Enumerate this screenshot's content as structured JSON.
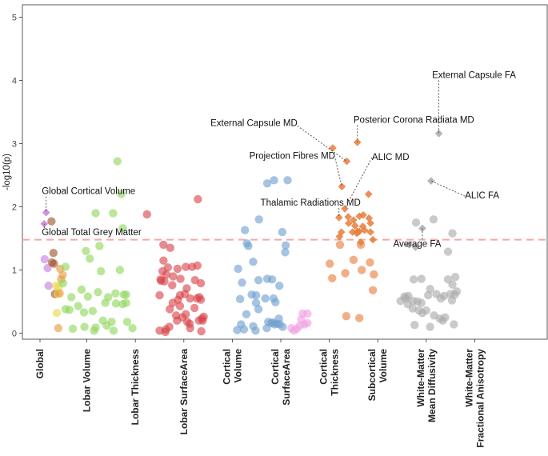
{
  "chart_data": {
    "type": "scatter",
    "ylabel": "-log10(p)",
    "ylim": [
      0,
      5
    ],
    "yticks": [
      "0",
      "1",
      "2",
      "3",
      "4",
      "5"
    ],
    "threshold": 1.48,
    "grid": false,
    "colors": {
      "global": "#c77ede",
      "lobar_volume": "#a0522d",
      "lobar_thickness": "#e6d84a",
      "lobar_surface_area": "#e69a3c",
      "cortical_volume": "#8fd65c",
      "cortical_surface_area": "#d9434a",
      "cortical_thickness": "#6fa0d0",
      "subcortical_volume": "#f0a0e0",
      "wm_md": "#e67e3c",
      "wm_fa": "#aaaaaa",
      "threshold": "#f4a9a9"
    },
    "categories": [
      {
        "key": "global",
        "label": [
          "Global"
        ],
        "x": 0
      },
      {
        "key": "lobar_volume",
        "label": [
          "Lobar Volume"
        ],
        "x": 1
      },
      {
        "key": "lobar_thickness",
        "label": [
          "Lobar Thickness"
        ],
        "x": 2
      },
      {
        "key": "lobar_surface_area",
        "label": [
          "Lobar SurfaceArea"
        ],
        "x": 3
      },
      {
        "key": "cortical_volume",
        "label": [
          "Cortical",
          "Volume"
        ],
        "x": 4
      },
      {
        "key": "cortical_surface_area",
        "label": [
          "Cortical",
          "SurfaceArea"
        ],
        "x": 5
      },
      {
        "key": "cortical_thickness",
        "label": [
          "Cortical",
          "Thickness"
        ],
        "x": 6
      },
      {
        "key": "subcortical_volume",
        "label": [
          "Subcortical",
          "Volume"
        ],
        "x": 7
      },
      {
        "key": "wm_md",
        "label": [
          "White-Matter",
          "Mean Diffusivity"
        ],
        "x": 8
      },
      {
        "key": "wm_fa",
        "label": [
          "White-Matter",
          "Fractional Anisotropy"
        ],
        "x": 9
      }
    ],
    "series": [
      {
        "key": "global",
        "marker": "diamond",
        "points": [
          [
            0.16,
            1.91
          ],
          [
            0.12,
            1.73
          ]
        ]
      },
      {
        "key": "global",
        "marker": "circle",
        "points": [
          [
            0.13,
            1.17
          ],
          [
            0.19,
            1.03
          ],
          [
            0.21,
            0.75
          ]
        ]
      },
      {
        "key": "lobar_volume",
        "marker": "circle",
        "points": [
          [
            0.27,
            1.77
          ],
          [
            0.31,
            1.27
          ],
          [
            0.28,
            1.12
          ],
          [
            0.32,
            1.1
          ],
          [
            0.34,
            0.62
          ]
        ]
      },
      {
        "key": "lobar_thickness",
        "marker": "circle",
        "points": [
          [
            0.36,
            0.75
          ],
          [
            0.4,
            0.62
          ],
          [
            0.42,
            0.73
          ],
          [
            0.38,
            0.32
          ]
        ]
      },
      {
        "key": "lobar_surface_area",
        "marker": "circle",
        "points": [
          [
            0.45,
            1.02
          ],
          [
            0.47,
            0.85
          ],
          [
            0.5,
            0.92
          ],
          [
            0.44,
            0.63
          ],
          [
            0.41,
            0.08
          ]
        ]
      },
      {
        "key": "cortical_volume",
        "marker": "circle",
        "points": [
          [
            1.63,
            2.72
          ],
          [
            1.71,
            2.2
          ],
          [
            1.18,
            1.9
          ],
          [
            1.54,
            1.9
          ],
          [
            1.74,
            1.66
          ],
          [
            0.56,
            1.05
          ],
          [
            1.26,
            1.38
          ],
          [
            0.98,
            1.3
          ],
          [
            1.06,
            1.18
          ],
          [
            1.29,
            0.98
          ],
          [
            1.68,
            1.0
          ],
          [
            0.51,
            0.79
          ],
          [
            0.68,
            0.57
          ],
          [
            0.89,
            0.69
          ],
          [
            1.02,
            0.58
          ],
          [
            1.23,
            0.65
          ],
          [
            1.44,
            0.57
          ],
          [
            1.59,
            0.63
          ],
          [
            1.76,
            0.61
          ],
          [
            1.81,
            0.61
          ],
          [
            1.38,
            0.48
          ],
          [
            1.6,
            0.47
          ],
          [
            1.74,
            0.46
          ],
          [
            1.81,
            0.48
          ],
          [
            0.56,
            0.38
          ],
          [
            0.64,
            0.37
          ],
          [
            0.82,
            0.43
          ],
          [
            0.94,
            0.33
          ],
          [
            1.12,
            0.35
          ],
          [
            1.33,
            0.2
          ],
          [
            1.41,
            0.12
          ],
          [
            1.51,
            0.18
          ],
          [
            1.55,
            0.04
          ],
          [
            0.71,
            0.07
          ],
          [
            0.95,
            0.1
          ],
          [
            1.18,
            0.09
          ],
          [
            1.15,
            0.04
          ],
          [
            1.83,
            0.18
          ],
          [
            1.94,
            0.08
          ]
        ]
      },
      {
        "key": "cortical_surface_area",
        "marker": "circle",
        "points": [
          [
            3.29,
            2.12
          ],
          [
            2.24,
            1.88
          ],
          [
            2.58,
            1.4
          ],
          [
            2.72,
            1.35
          ],
          [
            2.58,
            1.15
          ],
          [
            2.56,
            0.98
          ],
          [
            2.67,
            1.04
          ],
          [
            2.78,
            0.9
          ],
          [
            2.87,
            1.02
          ],
          [
            3.04,
            1.05
          ],
          [
            3.17,
            1.05
          ],
          [
            3.28,
            1.07
          ],
          [
            2.53,
            0.83
          ],
          [
            2.64,
            0.93
          ],
          [
            2.76,
            0.76
          ],
          [
            2.93,
            0.86
          ],
          [
            3.06,
            0.71
          ],
          [
            3.23,
            0.84
          ],
          [
            3.35,
            0.79
          ],
          [
            2.52,
            0.85
          ],
          [
            2.6,
            0.82
          ],
          [
            2.77,
            0.48
          ],
          [
            2.92,
            0.6
          ],
          [
            3.02,
            0.62
          ],
          [
            3.13,
            0.55
          ],
          [
            3.27,
            0.55
          ],
          [
            3.32,
            0.57
          ],
          [
            3.35,
            0.53
          ],
          [
            2.5,
            0.6
          ],
          [
            2.88,
            0.53
          ],
          [
            2.92,
            0.43
          ],
          [
            3.04,
            0.3
          ],
          [
            3.22,
            0.4
          ],
          [
            3.37,
            0.23
          ],
          [
            3.41,
            0.26
          ],
          [
            2.71,
            0.38
          ],
          [
            2.84,
            0.28
          ],
          [
            2.86,
            0.2
          ],
          [
            2.97,
            0.25
          ],
          [
            3.07,
            0.18
          ],
          [
            3.12,
            0.15
          ],
          [
            3.31,
            0.2
          ],
          [
            3.39,
            0.2
          ],
          [
            2.5,
            0.04
          ],
          [
            2.62,
            0.02
          ],
          [
            2.63,
            0.06
          ],
          [
            2.7,
            0.1
          ],
          [
            3.13,
            0.08
          ],
          [
            3.36,
            0.03
          ]
        ]
      },
      {
        "key": "cortical_thickness",
        "marker": "circle",
        "points": [
          [
            4.86,
            2.42
          ],
          [
            5.14,
            2.42
          ],
          [
            4.72,
            2.37
          ],
          [
            4.55,
            1.8
          ],
          [
            5.03,
            1.6
          ],
          [
            4.26,
            1.63
          ],
          [
            4.3,
            1.42
          ],
          [
            4.33,
            1.38
          ],
          [
            5.1,
            1.39
          ],
          [
            5.09,
            1.28
          ],
          [
            4.43,
            1.13
          ],
          [
            4.12,
            1.02
          ],
          [
            4.54,
            0.84
          ],
          [
            4.72,
            0.86
          ],
          [
            4.82,
            0.85
          ],
          [
            4.97,
            0.75
          ],
          [
            4.2,
            0.8
          ],
          [
            4.4,
            0.61
          ],
          [
            4.49,
            0.6
          ],
          [
            4.68,
            0.55
          ],
          [
            4.85,
            0.55
          ],
          [
            4.49,
            0.48
          ],
          [
            4.89,
            0.49
          ],
          [
            4.16,
            0.54
          ],
          [
            4.29,
            0.3
          ],
          [
            4.54,
            0.38
          ],
          [
            4.74,
            0.18
          ],
          [
            4.8,
            0.16
          ],
          [
            4.84,
            0.17
          ],
          [
            4.87,
            0.14
          ],
          [
            4.92,
            0.15
          ],
          [
            4.98,
            0.14
          ],
          [
            4.18,
            0.14
          ],
          [
            4.24,
            0.06
          ],
          [
            4.43,
            0.11
          ],
          [
            4.71,
            0.08
          ],
          [
            4.96,
            0.23
          ],
          [
            5.04,
            0.1
          ],
          [
            4.1,
            0.05
          ],
          [
            4.48,
            0.04
          ]
        ]
      },
      {
        "key": "subcortical_volume",
        "marker": "circle",
        "points": [
          [
            5.45,
            0.31
          ],
          [
            5.55,
            0.31
          ],
          [
            5.42,
            0.22
          ],
          [
            5.49,
            0.14
          ],
          [
            5.55,
            0.16
          ],
          [
            5.39,
            0.12
          ],
          [
            5.33,
            0.07
          ],
          [
            5.27,
            0.04
          ],
          [
            5.22,
            0.08
          ]
        ]
      },
      {
        "key": "wm_md",
        "marker": "diamond",
        "points": [
          [
            6.07,
            2.93
          ],
          [
            6.36,
            2.72
          ],
          [
            6.58,
            3.02
          ],
          [
            6.26,
            2.32
          ],
          [
            6.81,
            2.2
          ],
          [
            6.32,
            1.97
          ],
          [
            6.2,
            1.83
          ],
          [
            6.39,
            1.84
          ],
          [
            6.5,
            1.79
          ],
          [
            6.62,
            1.85
          ],
          [
            6.7,
            1.87
          ],
          [
            6.82,
            1.82
          ],
          [
            6.85,
            1.74
          ],
          [
            6.4,
            1.74
          ],
          [
            6.53,
            1.7
          ],
          [
            6.69,
            1.69
          ],
          [
            6.85,
            1.6
          ],
          [
            6.73,
            1.63
          ],
          [
            6.58,
            1.61
          ],
          [
            6.62,
            1.61
          ],
          [
            6.48,
            1.6
          ],
          [
            6.57,
            1.58
          ],
          [
            6.25,
            1.6
          ],
          [
            6.21,
            1.53
          ],
          [
            6.9,
            1.48
          ],
          [
            6.65,
            1.44
          ]
        ]
      },
      {
        "key": "wm_md",
        "marker": "circle",
        "points": [
          [
            6.22,
            1.4
          ],
          [
            6.65,
            1.4
          ],
          [
            6.01,
            1.1
          ],
          [
            6.33,
            0.95
          ],
          [
            6.06,
            0.87
          ],
          [
            6.5,
            1.16
          ],
          [
            6.67,
            1.0
          ],
          [
            6.84,
            1.12
          ],
          [
            6.92,
            0.93
          ],
          [
            6.9,
            0.68
          ],
          [
            6.35,
            0.27
          ],
          [
            6.62,
            0.24
          ]
        ]
      },
      {
        "key": "wm_fa",
        "marker": "diamond",
        "points": [
          [
            8.26,
            3.16
          ],
          [
            8.1,
            2.41
          ],
          [
            7.92,
            1.66
          ],
          [
            7.78,
            1.36
          ],
          [
            7.65,
            1.4
          ]
        ]
      },
      {
        "key": "wm_fa",
        "marker": "circle",
        "points": [
          [
            7.79,
            1.75
          ],
          [
            8.15,
            1.8
          ],
          [
            8.54,
            1.58
          ],
          [
            8.45,
            1.29
          ],
          [
            7.74,
            0.85
          ],
          [
            7.9,
            0.86
          ],
          [
            8.08,
            0.7
          ],
          [
            8.45,
            0.85
          ],
          [
            8.6,
            0.89
          ],
          [
            8.54,
            0.77
          ],
          [
            7.55,
            0.58
          ],
          [
            7.63,
            0.59
          ],
          [
            7.73,
            0.51
          ],
          [
            7.82,
            0.5
          ],
          [
            7.9,
            0.48
          ],
          [
            8.04,
            0.6
          ],
          [
            8.21,
            0.62
          ],
          [
            8.3,
            0.55
          ],
          [
            8.37,
            0.59
          ],
          [
            8.5,
            0.62
          ],
          [
            8.59,
            0.61
          ],
          [
            8.63,
            0.66
          ],
          [
            8.53,
            0.52
          ],
          [
            7.47,
            0.51
          ],
          [
            7.58,
            0.55
          ],
          [
            7.62,
            0.46
          ],
          [
            7.72,
            0.39
          ],
          [
            7.85,
            0.36
          ],
          [
            7.92,
            0.32
          ],
          [
            8.0,
            0.36
          ],
          [
            8.16,
            0.28
          ],
          [
            8.28,
            0.23
          ],
          [
            8.34,
            0.2
          ],
          [
            8.39,
            0.25
          ],
          [
            8.57,
            0.14
          ],
          [
            7.76,
            0.13
          ],
          [
            8.08,
            0.1
          ]
        ]
      }
    ],
    "annotations": [
      {
        "text": "External Capsule FA",
        "tx": 8.12,
        "ty": 4.04,
        "anchor": "start",
        "px": 8.26,
        "py": 3.16
      },
      {
        "text": "Posterior Corona Radiata MD",
        "tx": 6.5,
        "ty": 3.33,
        "anchor": "start",
        "px": 6.58,
        "py": 3.02
      },
      {
        "text": "External Capsule MD",
        "tx": 3.55,
        "ty": 3.28,
        "anchor": "start",
        "px": 6.36,
        "py": 2.72
      },
      {
        "text": "Projection Fibres MD",
        "tx": 4.35,
        "ty": 2.76,
        "anchor": "start",
        "px": 6.26,
        "py": 2.32
      },
      {
        "text": "ALIC MD",
        "tx": 6.88,
        "ty": 2.74,
        "anchor": "start",
        "px": 6.32,
        "py": 1.97
      },
      {
        "text": "Thalamic Radiations MD",
        "tx": 4.58,
        "ty": 2.02,
        "anchor": "start",
        "px": 6.2,
        "py": 1.83
      },
      {
        "text": "ALIC FA",
        "tx": 8.8,
        "ty": 2.13,
        "anchor": "start",
        "px": 8.1,
        "py": 2.41
      },
      {
        "text": "Average FA",
        "tx": 7.32,
        "ty": 1.37,
        "anchor": "start",
        "px": 7.92,
        "py": 1.66
      },
      {
        "text": "Global Cortical Volume",
        "tx": 0.07,
        "ty": 2.2,
        "anchor": "start",
        "px": 0.16,
        "py": 1.91
      },
      {
        "text": "Global Total Grey Matter",
        "tx": 0.07,
        "ty": 1.55,
        "anchor": "start",
        "px": 0.12,
        "py": 1.73
      }
    ]
  }
}
